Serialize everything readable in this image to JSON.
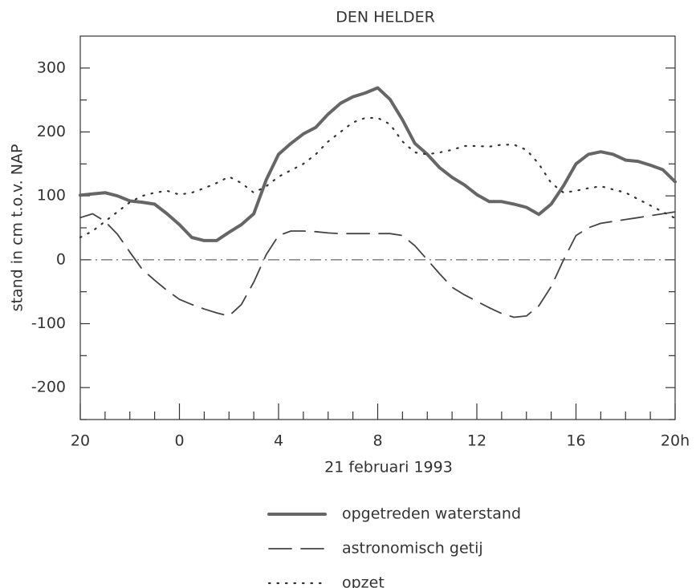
{
  "chart_data": {
    "type": "line",
    "title": "DEN HELDER",
    "x_label": "21 februari 1993",
    "y_label": "stand in cm t.o.v. NAP",
    "x": [
      -4,
      -3.5,
      -3,
      -2.5,
      -2,
      -1.5,
      -1,
      -0.5,
      0,
      0.5,
      1,
      1.5,
      2,
      2.5,
      3,
      3.5,
      4,
      4.5,
      5,
      5.5,
      6,
      6.5,
      7,
      7.5,
      8,
      8.5,
      9,
      9.5,
      10,
      10.5,
      11,
      11.5,
      12,
      12.5,
      13,
      13.5,
      14,
      14.5,
      15,
      15.5,
      16,
      16.5,
      17,
      17.5,
      18,
      18.5,
      19,
      19.5,
      20
    ],
    "series": [
      {
        "name": "opgetreden waterstand",
        "color": "#666666",
        "style": "solid",
        "values": [
          101,
          103,
          105,
          100,
          92,
          90,
          87,
          72,
          55,
          35,
          30,
          30,
          43,
          55,
          72,
          125,
          165,
          182,
          197,
          207,
          228,
          245,
          255,
          261,
          269,
          251,
          219,
          182,
          165,
          144,
          129,
          117,
          102,
          91,
          91,
          87,
          82,
          71,
          87,
          116,
          150,
          165,
          169,
          165,
          156,
          154,
          148,
          141,
          122
        ]
      },
      {
        "name": "astronomisch getij",
        "color": "#444444",
        "style": "dashed",
        "values": [
          66,
          72,
          60,
          40,
          12,
          -15,
          -32,
          -48,
          -62,
          -70,
          -77,
          -83,
          -88,
          -70,
          -35,
          8,
          38,
          45,
          45,
          44,
          42,
          41,
          41,
          41,
          41,
          41,
          38,
          22,
          0,
          -22,
          -43,
          -55,
          -65,
          -75,
          -84,
          -90,
          -88,
          -72,
          -42,
          0,
          38,
          50,
          57,
          60,
          63,
          66,
          69,
          72,
          75
        ]
      },
      {
        "name": "opzet",
        "color": "#333333",
        "style": "dotted",
        "values": [
          35,
          45,
          60,
          75,
          90,
          100,
          105,
          108,
          102,
          105,
          112,
          120,
          130,
          120,
          105,
          115,
          130,
          140,
          150,
          165,
          185,
          200,
          215,
          222,
          222,
          212,
          185,
          168,
          165,
          168,
          172,
          178,
          178,
          177,
          180,
          180,
          172,
          150,
          120,
          105,
          108,
          112,
          115,
          110,
          105,
          95,
          85,
          75,
          65
        ]
      }
    ],
    "xlim": [
      -4,
      20
    ],
    "xticks": [
      {
        "value": -4,
        "label": "20"
      },
      0,
      4,
      8,
      12,
      16,
      {
        "value": 20,
        "label": "20h"
      }
    ],
    "xticks_minor": [
      -3,
      -2,
      -1,
      1,
      2,
      3,
      5,
      6,
      7,
      9,
      10,
      11,
      13,
      14,
      15,
      17,
      18,
      19
    ],
    "ylim": [
      -250,
      350
    ],
    "yticks": [
      -200,
      -100,
      0,
      100,
      200,
      300
    ],
    "yticks_minor": [
      -250,
      -150,
      -50,
      50,
      150,
      250
    ],
    "zero_line": true,
    "grid": false
  }
}
